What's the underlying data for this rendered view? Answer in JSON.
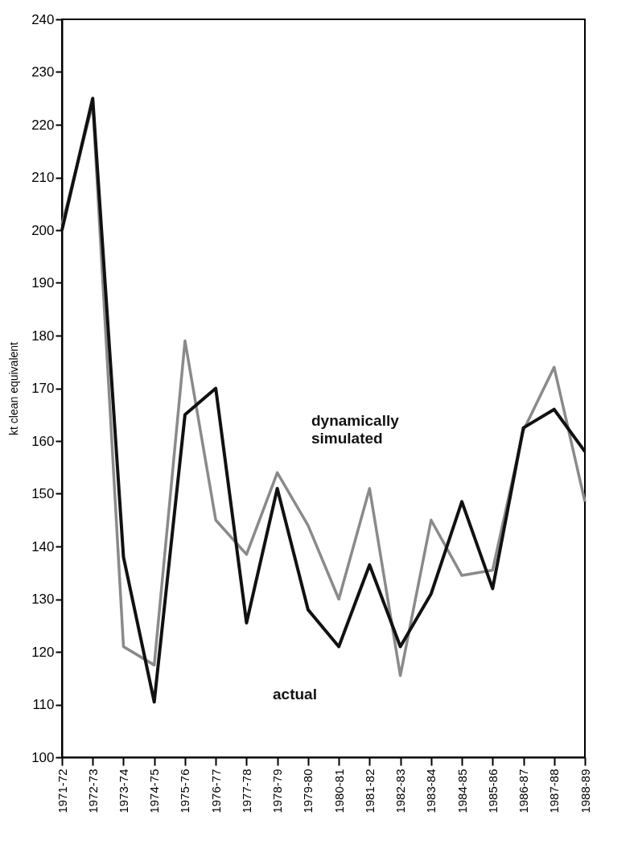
{
  "chart_data": {
    "type": "line",
    "ylabel": "kt clean equivalent",
    "categories": [
      "1971-72",
      "1972-73",
      "1973-74",
      "1974-75",
      "1975-76",
      "1976-77",
      "1977-78",
      "1978-79",
      "1979-80",
      "1980-81",
      "1981-82",
      "1982-83",
      "1983-84",
      "1984-85",
      "1985-86",
      "1986-87",
      "1987-88",
      "1988-89"
    ],
    "series": [
      {
        "name": "dynamically simulated",
        "color": "#8a8a8a",
        "values": [
          201,
          224,
          121,
          117.5,
          179,
          145,
          138.5,
          154,
          144,
          130,
          151,
          115.5,
          145,
          134.5,
          135.5,
          162,
          174,
          148.5
        ]
      },
      {
        "name": "actual",
        "color": "#111111",
        "values": [
          200,
          225,
          138,
          110.5,
          165,
          170,
          125.5,
          151,
          128,
          121,
          136.5,
          121,
          131,
          148.5,
          132,
          162.5,
          166,
          158
        ]
      }
    ],
    "ylim": [
      100,
      240
    ],
    "yticks": [
      100,
      110,
      120,
      130,
      140,
      150,
      160,
      170,
      180,
      190,
      200,
      210,
      220,
      230,
      240
    ],
    "grid": false,
    "marker": "none",
    "line_style": "solid"
  }
}
